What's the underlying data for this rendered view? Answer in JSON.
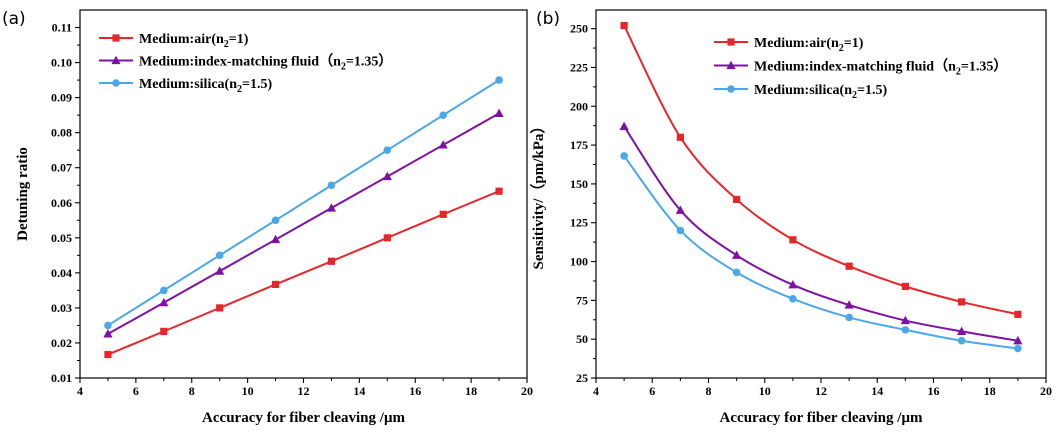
{
  "colors": {
    "air": "#e8262a",
    "fluid": "#7f10a6",
    "silica": "#4aa8ea"
  },
  "chart_data": [
    {
      "type": "line",
      "panel_label": "(a)",
      "xlabel": "Accuracy for fiber cleaving /μm",
      "ylabel": "Detuning ratio",
      "xlim": [
        4,
        20
      ],
      "ylim": [
        0.01,
        0.115
      ],
      "x_ticks": [
        "4",
        "6",
        "8",
        "10",
        "12",
        "14",
        "16",
        "18",
        "20"
      ],
      "y_ticks": [
        "0.01",
        "0.02",
        "0.03",
        "0.04",
        "0.05",
        "0.06",
        "0.07",
        "0.08",
        "0.09",
        "0.10",
        "0.11"
      ],
      "legend_position": "top-left",
      "x": [
        5,
        7,
        9,
        11,
        13,
        15,
        17,
        19
      ],
      "series": [
        {
          "name": "Medium:air(n",
          "sub": "2",
          "suffix": "=1)",
          "color_key": "air",
          "marker": "square",
          "values": [
            0.0167,
            0.0233,
            0.03,
            0.0367,
            0.0433,
            0.05,
            0.0567,
            0.0633
          ]
        },
        {
          "name": "Medium:index-matching fluid（n",
          "sub": "2",
          "suffix": "=1.35）",
          "color_key": "fluid",
          "marker": "triangle",
          "values": [
            0.0226,
            0.0315,
            0.0405,
            0.0495,
            0.0585,
            0.0675,
            0.0765,
            0.0855
          ]
        },
        {
          "name": "Medium:silica(n",
          "sub": "2",
          "suffix": "=1.5)",
          "color_key": "silica",
          "marker": "circle",
          "values": [
            0.025,
            0.035,
            0.045,
            0.055,
            0.065,
            0.075,
            0.085,
            0.095
          ]
        }
      ]
    },
    {
      "type": "line",
      "panel_label": "(b)",
      "xlabel": "Accuracy for fiber cleaving /μm",
      "ylabel": "Sensitivity/（pm/kPa）",
      "xlim": [
        4,
        20
      ],
      "ylim": [
        25,
        262
      ],
      "x_ticks": [
        "4",
        "6",
        "8",
        "10",
        "12",
        "14",
        "16",
        "18",
        "20"
      ],
      "y_ticks": [
        "25",
        "50",
        "75",
        "100",
        "125",
        "150",
        "175",
        "200",
        "225",
        "250"
      ],
      "legend_position": "top-right",
      "x": [
        5,
        7,
        9,
        11,
        13,
        15,
        17,
        19
      ],
      "series": [
        {
          "name": "Medium:air(n",
          "sub": "2",
          "suffix": "=1)",
          "color_key": "air",
          "marker": "square",
          "values": [
            252,
            180,
            140,
            114,
            97,
            84,
            74,
            66
          ]
        },
        {
          "name": "Medium:index-matching fluid（n",
          "sub": "2",
          "suffix": "=1.35）",
          "color_key": "fluid",
          "marker": "triangle",
          "values": [
            187,
            133,
            104,
            85,
            72,
            62,
            55,
            49
          ]
        },
        {
          "name": "Medium:silica(n",
          "sub": "2",
          "suffix": "=1.5)",
          "color_key": "silica",
          "marker": "circle",
          "values": [
            168,
            120,
            93,
            76,
            64,
            56,
            49,
            44
          ]
        }
      ]
    }
  ]
}
